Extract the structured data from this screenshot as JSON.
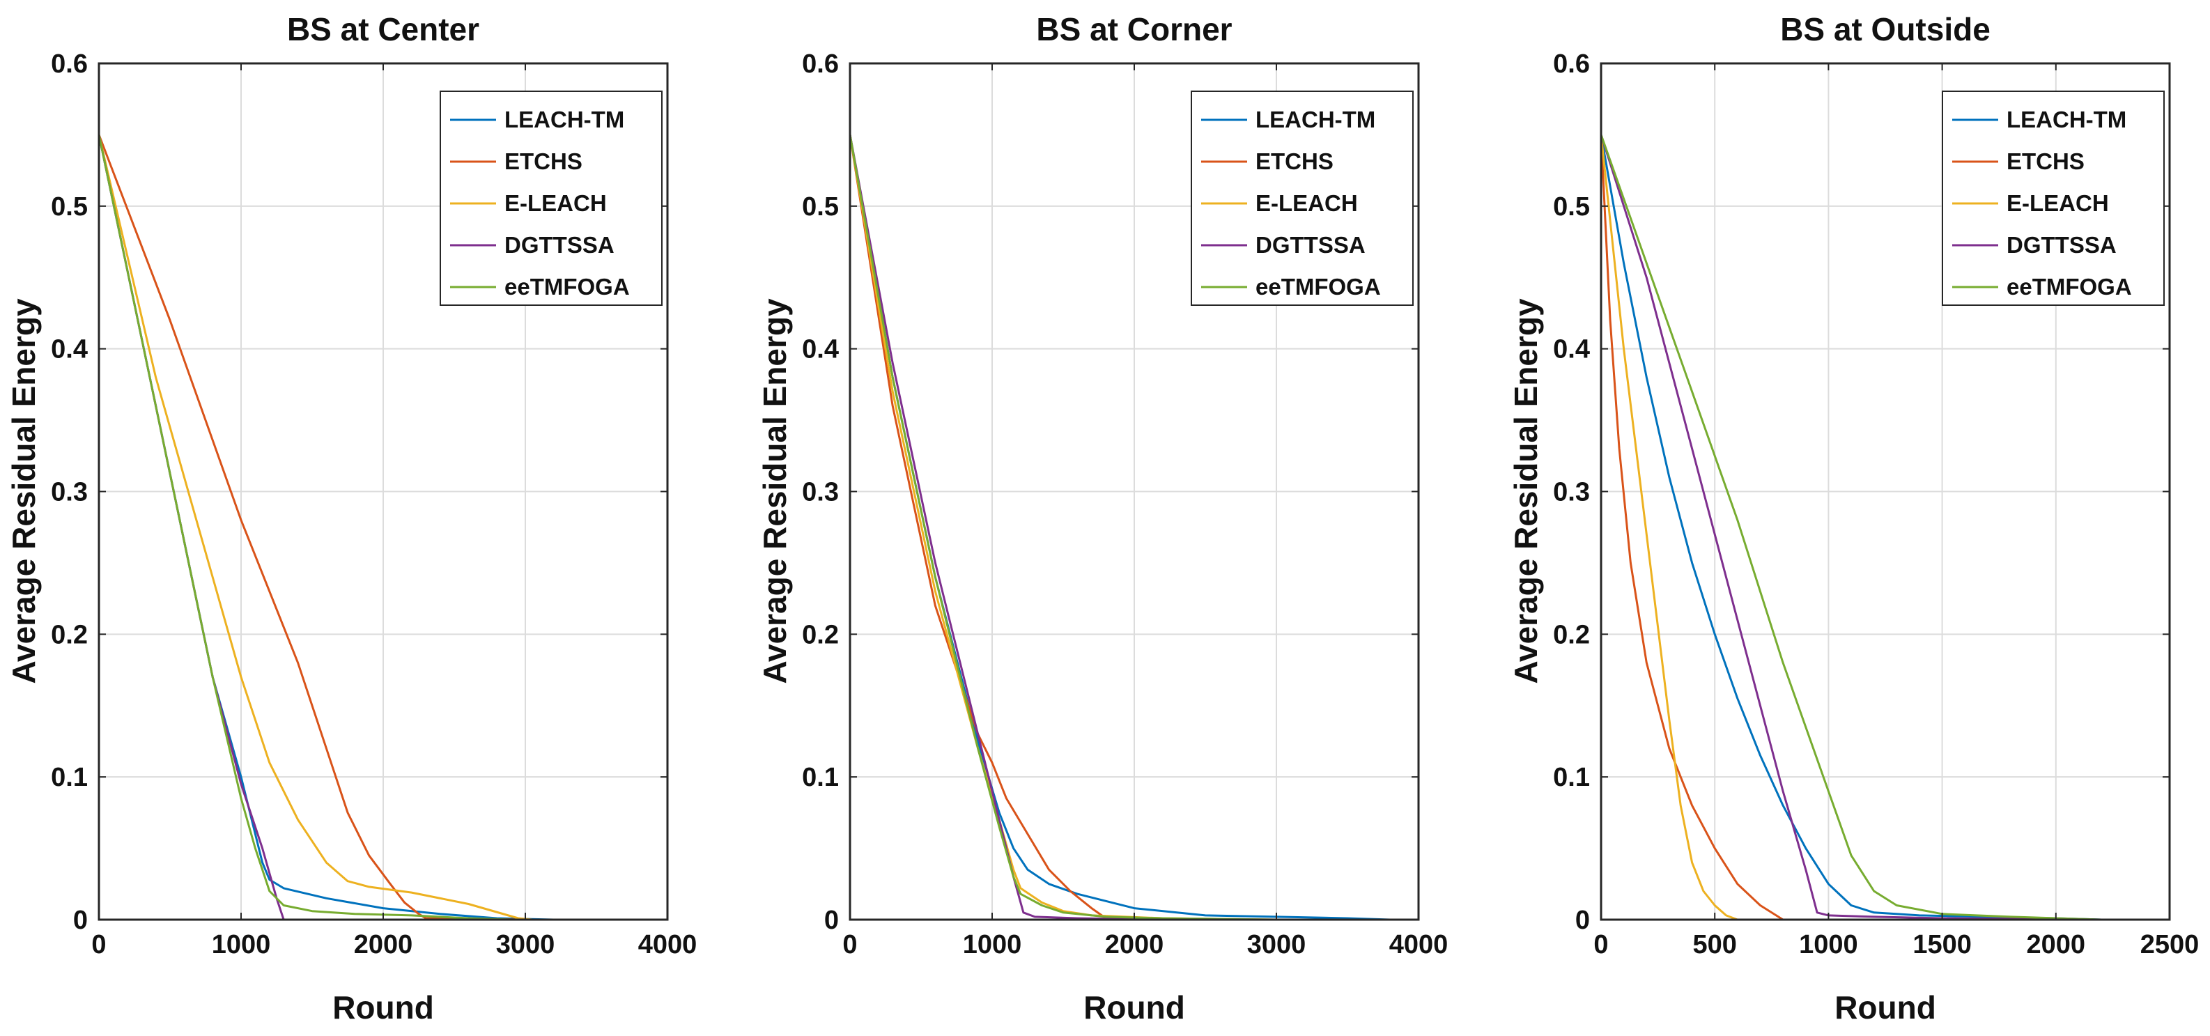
{
  "chart_data": [
    {
      "type": "line",
      "title": "BS at Center",
      "xlabel": "Round",
      "ylabel": "Average Residual Energy",
      "xlim": [
        0,
        4000
      ],
      "ylim": [
        0,
        0.6
      ],
      "xticks": [
        0,
        1000,
        2000,
        3000,
        4000
      ],
      "xtick_labels": [
        "0",
        "1000",
        "2000",
        "3000",
        "4000"
      ],
      "yticks": [
        0,
        0.1,
        0.2,
        0.3,
        0.4,
        0.5,
        0.6
      ],
      "ytick_labels": [
        "0",
        "0.1",
        "0.2",
        "0.3",
        "0.4",
        "0.5",
        "0.6"
      ],
      "grid": true,
      "legend_position": "top-right",
      "series": [
        {
          "name": "LEACH-TM",
          "color": "#0072BD",
          "x": [
            0,
            400,
            800,
            1000,
            1150,
            1200,
            1300,
            1600,
            2000,
            2400,
            2800,
            3200
          ],
          "y": [
            0.55,
            0.36,
            0.17,
            0.1,
            0.04,
            0.028,
            0.022,
            0.015,
            0.008,
            0.004,
            0.001,
            0
          ]
        },
        {
          "name": "ETCHS",
          "color": "#D95319",
          "x": [
            0,
            500,
            1000,
            1400,
            1600,
            1750,
            1900,
            2050,
            2150,
            2250,
            2300,
            3000
          ],
          "y": [
            0.55,
            0.42,
            0.28,
            0.18,
            0.12,
            0.075,
            0.045,
            0.025,
            0.012,
            0.004,
            0.001,
            0
          ]
        },
        {
          "name": "E-LEACH",
          "color": "#EDB120",
          "x": [
            0,
            400,
            800,
            1000,
            1200,
            1400,
            1600,
            1750,
            1900,
            2200,
            2600,
            2950,
            3050
          ],
          "y": [
            0.55,
            0.38,
            0.24,
            0.17,
            0.11,
            0.07,
            0.04,
            0.027,
            0.023,
            0.019,
            0.011,
            0.001,
            0
          ]
        },
        {
          "name": "DGTTSSA",
          "color": "#7E2F8E",
          "x": [
            0,
            400,
            800,
            1000,
            1150,
            1250,
            1300,
            1600,
            2000,
            3000
          ],
          "y": [
            0.55,
            0.36,
            0.17,
            0.095,
            0.05,
            0.015,
            0,
            0,
            0,
            0
          ]
        },
        {
          "name": "eeTMFOGA",
          "color": "#77AC30",
          "x": [
            0,
            400,
            800,
            1000,
            1100,
            1200,
            1300,
            1500,
            1800,
            2200,
            2600,
            2900
          ],
          "y": [
            0.55,
            0.36,
            0.17,
            0.085,
            0.05,
            0.02,
            0.01,
            0.006,
            0.004,
            0.003,
            0.001,
            0
          ]
        }
      ]
    },
    {
      "type": "line",
      "title": "BS at Corner",
      "xlabel": "Round",
      "ylabel": "Average Residual Energy",
      "xlim": [
        0,
        4000
      ],
      "ylim": [
        0,
        0.6
      ],
      "xticks": [
        0,
        1000,
        2000,
        3000,
        4000
      ],
      "xtick_labels": [
        "0",
        "1000",
        "2000",
        "3000",
        "4000"
      ],
      "yticks": [
        0,
        0.1,
        0.2,
        0.3,
        0.4,
        0.5,
        0.6
      ],
      "ytick_labels": [
        "0",
        "0.1",
        "0.2",
        "0.3",
        "0.4",
        "0.5",
        "0.6"
      ],
      "grid": true,
      "legend_position": "top-right",
      "series": [
        {
          "name": "LEACH-TM",
          "color": "#0072BD",
          "x": [
            0,
            300,
            600,
            900,
            1050,
            1150,
            1250,
            1400,
            1600,
            2000,
            2500,
            3000,
            3500,
            3800
          ],
          "y": [
            0.55,
            0.38,
            0.24,
            0.125,
            0.075,
            0.05,
            0.035,
            0.025,
            0.018,
            0.008,
            0.003,
            0.002,
            0.001,
            0
          ]
        },
        {
          "name": "ETCHS",
          "color": "#D95319",
          "x": [
            0,
            300,
            600,
            900,
            1000,
            1100,
            1250,
            1400,
            1550,
            1700,
            1800,
            2200,
            3000
          ],
          "y": [
            0.55,
            0.36,
            0.22,
            0.13,
            0.11,
            0.085,
            0.06,
            0.035,
            0.02,
            0.008,
            0.001,
            0,
            0
          ]
        },
        {
          "name": "E-LEACH",
          "color": "#EDB120",
          "x": [
            0,
            300,
            600,
            900,
            1050,
            1150,
            1200,
            1350,
            1500,
            1700,
            2200,
            3000,
            3800
          ],
          "y": [
            0.55,
            0.37,
            0.23,
            0.12,
            0.07,
            0.035,
            0.022,
            0.012,
            0.006,
            0.003,
            0.001,
            0,
            0
          ]
        },
        {
          "name": "DGTTSSA",
          "color": "#7E2F8E",
          "x": [
            0,
            300,
            600,
            900,
            1050,
            1150,
            1220,
            1300,
            1600,
            2200,
            3000
          ],
          "y": [
            0.55,
            0.39,
            0.25,
            0.13,
            0.07,
            0.03,
            0.005,
            0.002,
            0.001,
            0,
            0
          ]
        },
        {
          "name": "eeTMFOGA",
          "color": "#77AC30",
          "x": [
            0,
            300,
            600,
            900,
            1050,
            1150,
            1200,
            1350,
            1500,
            1800,
            2200,
            3000
          ],
          "y": [
            0.55,
            0.38,
            0.24,
            0.12,
            0.065,
            0.03,
            0.018,
            0.01,
            0.005,
            0.002,
            0.001,
            0
          ]
        }
      ]
    },
    {
      "type": "line",
      "title": "BS at Outside",
      "xlabel": "Round",
      "ylabel": "Average Residual Energy",
      "xlim": [
        0,
        2500
      ],
      "ylim": [
        0,
        0.6
      ],
      "xticks": [
        0,
        500,
        1000,
        1500,
        2000,
        2500
      ],
      "xtick_labels": [
        "0",
        "500",
        "1000",
        "1500",
        "2000",
        "2500"
      ],
      "yticks": [
        0,
        0.1,
        0.2,
        0.3,
        0.4,
        0.5,
        0.6
      ],
      "ytick_labels": [
        "0",
        "0.1",
        "0.2",
        "0.3",
        "0.4",
        "0.5",
        "0.6"
      ],
      "grid": true,
      "legend_position": "top-right",
      "series": [
        {
          "name": "LEACH-TM",
          "color": "#0072BD",
          "x": [
            0,
            100,
            200,
            300,
            400,
            500,
            600,
            700,
            800,
            900,
            1000,
            1100,
            1200,
            1400,
            1700,
            2000,
            2200
          ],
          "y": [
            0.55,
            0.46,
            0.38,
            0.31,
            0.25,
            0.2,
            0.155,
            0.115,
            0.08,
            0.05,
            0.025,
            0.01,
            0.005,
            0.003,
            0.002,
            0.001,
            0
          ]
        },
        {
          "name": "ETCHS",
          "color": "#D95319",
          "x": [
            0,
            40,
            80,
            130,
            200,
            300,
            400,
            500,
            600,
            700,
            800,
            1000,
            2000
          ],
          "y": [
            0.55,
            0.42,
            0.33,
            0.25,
            0.18,
            0.12,
            0.08,
            0.05,
            0.025,
            0.01,
            0,
            0,
            0
          ]
        },
        {
          "name": "E-LEACH",
          "color": "#EDB120",
          "x": [
            0,
            100,
            200,
            300,
            350,
            400,
            450,
            500,
            550,
            600,
            800,
            1500,
            2200
          ],
          "y": [
            0.55,
            0.4,
            0.27,
            0.14,
            0.08,
            0.04,
            0.02,
            0.01,
            0.003,
            0,
            0,
            0,
            0
          ]
        },
        {
          "name": "DGTTSSA",
          "color": "#7E2F8E",
          "x": [
            0,
            200,
            400,
            600,
            800,
            900,
            950,
            1000,
            1200,
            1500,
            2200
          ],
          "y": [
            0.55,
            0.45,
            0.33,
            0.21,
            0.09,
            0.035,
            0.005,
            0.003,
            0.002,
            0.001,
            0
          ]
        },
        {
          "name": "eeTMFOGA",
          "color": "#77AC30",
          "x": [
            0,
            200,
            400,
            600,
            800,
            1000,
            1100,
            1200,
            1300,
            1500,
            1800,
            2200
          ],
          "y": [
            0.55,
            0.46,
            0.37,
            0.28,
            0.18,
            0.09,
            0.045,
            0.02,
            0.01,
            0.004,
            0.002,
            0
          ]
        }
      ]
    }
  ]
}
